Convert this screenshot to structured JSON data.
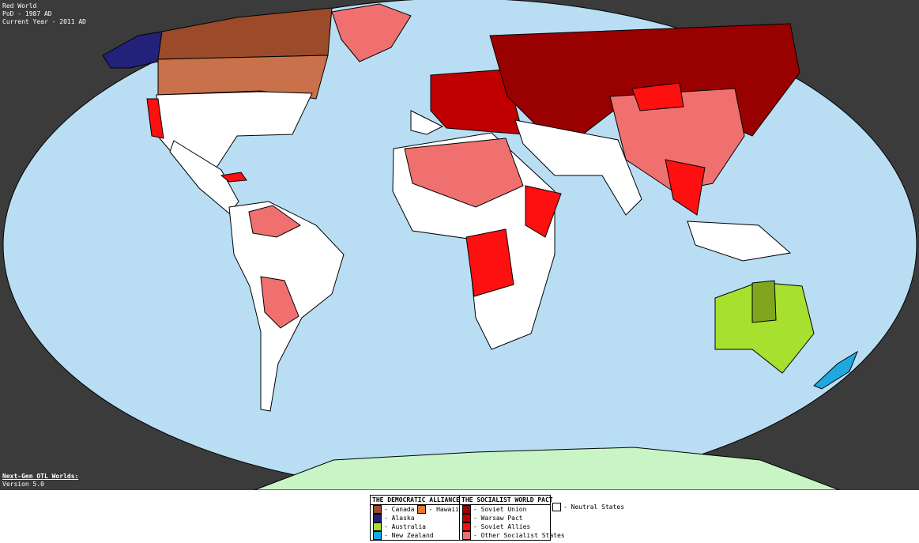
{
  "header": {
    "title": "Red World",
    "pod": "PoD - 1987 AD",
    "current_year": "Current Year - 2011 AD"
  },
  "footer": {
    "series": "Next-Gen OTL Worlds:",
    "version": "Version 5.0"
  },
  "legend": [
    {
      "title": "THE DEMOCRATIC ALLIANCE",
      "items": [
        "- Canada",
        "- Hawaii",
        "- Alaska",
        "- Australia",
        "- New Zealand"
      ]
    },
    {
      "title": "THE SOCIALIST WORLD PACT",
      "items": [
        "- Soviet Union",
        "- Warsaw Pact",
        "- Soviet Allies",
        "- Other Socialist States"
      ]
    },
    {
      "items": [
        "- Neutral States"
      ]
    }
  ]
}
